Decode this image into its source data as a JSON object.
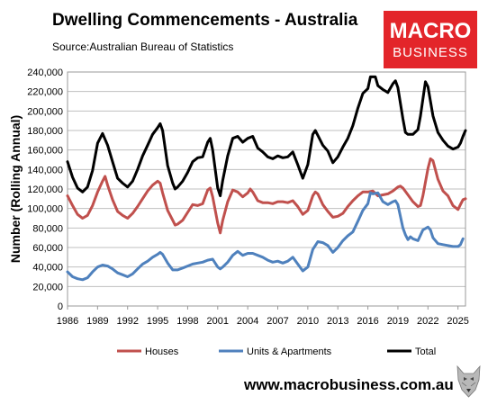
{
  "header": {
    "title": "Dwelling Commencements - Australia",
    "source": "Source:Australian Bureau of Statistics"
  },
  "logo": {
    "line1": "MACRO",
    "line2": "BUSINESS",
    "color": "#e3252a"
  },
  "footer": {
    "url": "www.macrobusiness.com.au"
  },
  "chart_data": {
    "type": "line",
    "ylabel": "Number (Rolling Annual)",
    "xlabel": "",
    "ylim": [
      0,
      240000
    ],
    "yticks": [
      0,
      20000,
      40000,
      60000,
      80000,
      100000,
      120000,
      140000,
      160000,
      180000,
      200000,
      220000,
      240000
    ],
    "ytick_labels": [
      "0",
      "20,000",
      "40,000",
      "60,000",
      "80,000",
      "100,000",
      "120,000",
      "140,000",
      "160,000",
      "180,000",
      "200,000",
      "220,000",
      "240,000"
    ],
    "xlim": [
      1986,
      2025.75
    ],
    "xticks": [
      1986,
      1989,
      1992,
      1995,
      1998,
      2001,
      2004,
      2007,
      2010,
      2013,
      2016,
      2019,
      2022,
      2025
    ],
    "xtick_labels": [
      "1986",
      "1989",
      "1992",
      "1995",
      "1998",
      "2001",
      "2004",
      "2007",
      "2010",
      "2013",
      "2016",
      "2019",
      "2022",
      "2025"
    ],
    "grid": true,
    "legend_position": "bottom",
    "series": [
      {
        "name": "Houses",
        "color": "#c0504d",
        "points": [
          [
            1986.0,
            113000
          ],
          [
            1986.5,
            103000
          ],
          [
            1987.0,
            94000
          ],
          [
            1987.5,
            90000
          ],
          [
            1988.0,
            93000
          ],
          [
            1988.5,
            103000
          ],
          [
            1989.0,
            117000
          ],
          [
            1989.5,
            128000
          ],
          [
            1989.75,
            133000
          ],
          [
            1990.0,
            124000
          ],
          [
            1990.5,
            109000
          ],
          [
            1991.0,
            97000
          ],
          [
            1991.5,
            93000
          ],
          [
            1992.0,
            90000
          ],
          [
            1992.5,
            95000
          ],
          [
            1993.0,
            102000
          ],
          [
            1993.5,
            110000
          ],
          [
            1994.0,
            118000
          ],
          [
            1994.5,
            124000
          ],
          [
            1995.0,
            128000
          ],
          [
            1995.25,
            126000
          ],
          [
            1995.5,
            116000
          ],
          [
            1996.0,
            98000
          ],
          [
            1996.5,
            88000
          ],
          [
            1996.75,
            83000
          ],
          [
            1997.0,
            84000
          ],
          [
            1997.5,
            88000
          ],
          [
            1998.0,
            96000
          ],
          [
            1998.5,
            104000
          ],
          [
            1999.0,
            103000
          ],
          [
            1999.5,
            105000
          ],
          [
            2000.0,
            119000
          ],
          [
            2000.25,
            121000
          ],
          [
            2000.5,
            112000
          ],
          [
            2001.0,
            85000
          ],
          [
            2001.25,
            75000
          ],
          [
            2001.5,
            88000
          ],
          [
            2002.0,
            107000
          ],
          [
            2002.5,
            119000
          ],
          [
            2003.0,
            117000
          ],
          [
            2003.5,
            112000
          ],
          [
            2004.0,
            116000
          ],
          [
            2004.25,
            120000
          ],
          [
            2004.5,
            117000
          ],
          [
            2005.0,
            108000
          ],
          [
            2005.5,
            106000
          ],
          [
            2006.0,
            106000
          ],
          [
            2006.5,
            105000
          ],
          [
            2007.0,
            107000
          ],
          [
            2007.5,
            107000
          ],
          [
            2008.0,
            106000
          ],
          [
            2008.5,
            108000
          ],
          [
            2009.0,
            102000
          ],
          [
            2009.5,
            94000
          ],
          [
            2010.0,
            98000
          ],
          [
            2010.5,
            113000
          ],
          [
            2010.75,
            117000
          ],
          [
            2011.0,
            115000
          ],
          [
            2011.5,
            104000
          ],
          [
            2012.0,
            97000
          ],
          [
            2012.5,
            91000
          ],
          [
            2013.0,
            92000
          ],
          [
            2013.5,
            95000
          ],
          [
            2014.0,
            102000
          ],
          [
            2014.5,
            108000
          ],
          [
            2015.0,
            113000
          ],
          [
            2015.5,
            117000
          ],
          [
            2016.0,
            117000
          ],
          [
            2016.5,
            118000
          ],
          [
            2017.0,
            113000
          ],
          [
            2017.5,
            114000
          ],
          [
            2018.0,
            115000
          ],
          [
            2018.5,
            118000
          ],
          [
            2019.0,
            122000
          ],
          [
            2019.25,
            123000
          ],
          [
            2019.5,
            121000
          ],
          [
            2020.0,
            114000
          ],
          [
            2020.5,
            107000
          ],
          [
            2021.0,
            102000
          ],
          [
            2021.25,
            103000
          ],
          [
            2021.5,
            113000
          ],
          [
            2022.0,
            141000
          ],
          [
            2022.25,
            151000
          ],
          [
            2022.5,
            149000
          ],
          [
            2023.0,
            130000
          ],
          [
            2023.5,
            118000
          ],
          [
            2024.0,
            113000
          ],
          [
            2024.5,
            103000
          ],
          [
            2025.0,
            99000
          ],
          [
            2025.25,
            104000
          ],
          [
            2025.5,
            109000
          ],
          [
            2025.75,
            110000
          ]
        ]
      },
      {
        "name": "Units & Apartments",
        "color": "#4f81bd",
        "points": [
          [
            1986.0,
            35000
          ],
          [
            1986.5,
            30000
          ],
          [
            1987.0,
            28000
          ],
          [
            1987.5,
            27000
          ],
          [
            1988.0,
            29000
          ],
          [
            1988.5,
            35000
          ],
          [
            1989.0,
            40000
          ],
          [
            1989.5,
            42000
          ],
          [
            1990.0,
            41000
          ],
          [
            1990.5,
            38000
          ],
          [
            1991.0,
            34000
          ],
          [
            1991.5,
            32000
          ],
          [
            1992.0,
            30000
          ],
          [
            1992.5,
            33000
          ],
          [
            1993.0,
            38000
          ],
          [
            1993.5,
            43000
          ],
          [
            1994.0,
            46000
          ],
          [
            1994.5,
            50000
          ],
          [
            1995.0,
            53000
          ],
          [
            1995.25,
            55000
          ],
          [
            1995.5,
            53000
          ],
          [
            1996.0,
            44000
          ],
          [
            1996.5,
            37000
          ],
          [
            1997.0,
            37000
          ],
          [
            1997.5,
            39000
          ],
          [
            1998.0,
            41000
          ],
          [
            1998.5,
            43000
          ],
          [
            1999.0,
            44000
          ],
          [
            1999.5,
            45000
          ],
          [
            2000.0,
            47000
          ],
          [
            2000.5,
            48000
          ],
          [
            2001.0,
            40000
          ],
          [
            2001.25,
            38000
          ],
          [
            2001.5,
            40000
          ],
          [
            2002.0,
            45000
          ],
          [
            2002.5,
            52000
          ],
          [
            2003.0,
            56000
          ],
          [
            2003.5,
            52000
          ],
          [
            2004.0,
            54000
          ],
          [
            2004.5,
            54000
          ],
          [
            2005.0,
            52000
          ],
          [
            2005.5,
            50000
          ],
          [
            2006.0,
            47000
          ],
          [
            2006.5,
            45000
          ],
          [
            2007.0,
            46000
          ],
          [
            2007.5,
            44000
          ],
          [
            2008.0,
            46000
          ],
          [
            2008.5,
            50000
          ],
          [
            2009.0,
            43000
          ],
          [
            2009.5,
            36000
          ],
          [
            2010.0,
            40000
          ],
          [
            2010.5,
            58000
          ],
          [
            2011.0,
            66000
          ],
          [
            2011.5,
            65000
          ],
          [
            2012.0,
            62000
          ],
          [
            2012.5,
            55000
          ],
          [
            2013.0,
            60000
          ],
          [
            2013.5,
            67000
          ],
          [
            2014.0,
            72000
          ],
          [
            2014.5,
            76000
          ],
          [
            2015.0,
            87000
          ],
          [
            2015.5,
            98000
          ],
          [
            2016.0,
            105000
          ],
          [
            2016.25,
            116000
          ],
          [
            2016.5,
            115000
          ],
          [
            2017.0,
            116000
          ],
          [
            2017.5,
            107000
          ],
          [
            2018.0,
            104000
          ],
          [
            2018.5,
            107000
          ],
          [
            2018.75,
            108000
          ],
          [
            2019.0,
            104000
          ],
          [
            2019.5,
            80000
          ],
          [
            2019.75,
            73000
          ],
          [
            2020.0,
            68000
          ],
          [
            2020.25,
            71000
          ],
          [
            2020.5,
            69000
          ],
          [
            2021.0,
            67000
          ],
          [
            2021.5,
            78000
          ],
          [
            2022.0,
            81000
          ],
          [
            2022.25,
            78000
          ],
          [
            2022.5,
            70000
          ],
          [
            2023.0,
            64000
          ],
          [
            2023.5,
            63000
          ],
          [
            2024.0,
            62000
          ],
          [
            2024.5,
            61000
          ],
          [
            2025.0,
            61000
          ],
          [
            2025.25,
            63000
          ],
          [
            2025.5,
            69000
          ]
        ]
      },
      {
        "name": "Total",
        "color": "#000000",
        "points": [
          [
            1986.0,
            148000
          ],
          [
            1986.5,
            132000
          ],
          [
            1987.0,
            121000
          ],
          [
            1987.5,
            117000
          ],
          [
            1988.0,
            122000
          ],
          [
            1988.5,
            139000
          ],
          [
            1989.0,
            167000
          ],
          [
            1989.5,
            177000
          ],
          [
            1990.0,
            165000
          ],
          [
            1990.5,
            148000
          ],
          [
            1991.0,
            131000
          ],
          [
            1991.5,
            126000
          ],
          [
            1992.0,
            122000
          ],
          [
            1992.5,
            128000
          ],
          [
            1993.0,
            140000
          ],
          [
            1993.5,
            154000
          ],
          [
            1994.0,
            165000
          ],
          [
            1994.5,
            176000
          ],
          [
            1995.0,
            183000
          ],
          [
            1995.25,
            187000
          ],
          [
            1995.5,
            180000
          ],
          [
            1996.0,
            144000
          ],
          [
            1996.5,
            126000
          ],
          [
            1996.75,
            120000
          ],
          [
            1997.0,
            122000
          ],
          [
            1997.5,
            128000
          ],
          [
            1998.0,
            137000
          ],
          [
            1998.5,
            148000
          ],
          [
            1999.0,
            152000
          ],
          [
            1999.5,
            153000
          ],
          [
            2000.0,
            168000
          ],
          [
            2000.25,
            172000
          ],
          [
            2000.5,
            160000
          ],
          [
            2001.0,
            121000
          ],
          [
            2001.25,
            113000
          ],
          [
            2001.5,
            129000
          ],
          [
            2002.0,
            154000
          ],
          [
            2002.5,
            172000
          ],
          [
            2003.0,
            174000
          ],
          [
            2003.5,
            168000
          ],
          [
            2004.0,
            172000
          ],
          [
            2004.5,
            174000
          ],
          [
            2005.0,
            162000
          ],
          [
            2005.5,
            158000
          ],
          [
            2006.0,
            153000
          ],
          [
            2006.5,
            151000
          ],
          [
            2007.0,
            154000
          ],
          [
            2007.5,
            152000
          ],
          [
            2008.0,
            153000
          ],
          [
            2008.5,
            158000
          ],
          [
            2009.0,
            145000
          ],
          [
            2009.5,
            131000
          ],
          [
            2010.0,
            145000
          ],
          [
            2010.5,
            176000
          ],
          [
            2010.75,
            180000
          ],
          [
            2011.0,
            175000
          ],
          [
            2011.5,
            165000
          ],
          [
            2012.0,
            159000
          ],
          [
            2012.5,
            147000
          ],
          [
            2013.0,
            153000
          ],
          [
            2013.5,
            163000
          ],
          [
            2014.0,
            172000
          ],
          [
            2014.5,
            185000
          ],
          [
            2015.0,
            203000
          ],
          [
            2015.5,
            218000
          ],
          [
            2016.0,
            223000
          ],
          [
            2016.25,
            235000
          ],
          [
            2016.75,
            235000
          ],
          [
            2017.0,
            226000
          ],
          [
            2017.5,
            222000
          ],
          [
            2018.0,
            219000
          ],
          [
            2018.5,
            228000
          ],
          [
            2018.75,
            231000
          ],
          [
            2019.0,
            224000
          ],
          [
            2019.5,
            192000
          ],
          [
            2019.75,
            178000
          ],
          [
            2020.0,
            176000
          ],
          [
            2020.5,
            176000
          ],
          [
            2021.0,
            181000
          ],
          [
            2021.25,
            195000
          ],
          [
            2021.75,
            230000
          ],
          [
            2022.0,
            225000
          ],
          [
            2022.5,
            195000
          ],
          [
            2023.0,
            178000
          ],
          [
            2023.5,
            170000
          ],
          [
            2024.0,
            164000
          ],
          [
            2024.5,
            161000
          ],
          [
            2025.0,
            163000
          ],
          [
            2025.25,
            167000
          ],
          [
            2025.5,
            174000
          ],
          [
            2025.75,
            180000
          ]
        ]
      }
    ]
  }
}
